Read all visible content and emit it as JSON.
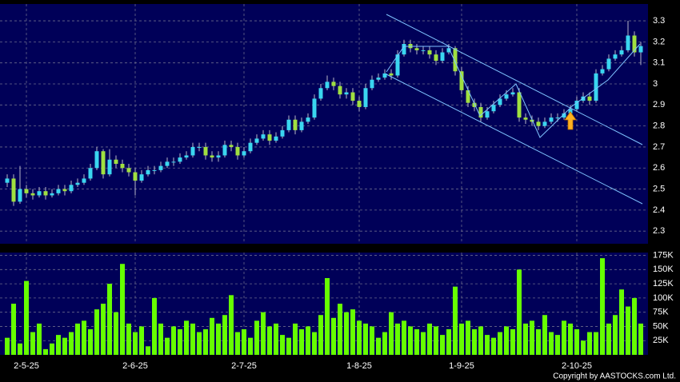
{
  "chart_data": [
    {
      "type": "candlestick",
      "up_color": "#3ad6f0",
      "down_color": "#a0e040",
      "grid": true,
      "ylim": [
        2.24,
        3.38
      ],
      "yticks": [
        2.3,
        2.4,
        2.5,
        2.6,
        2.7,
        2.8,
        2.9,
        3,
        3.1,
        3.2,
        3.3
      ],
      "open": [
        2.53,
        2.55,
        2.44,
        2.5,
        2.48,
        2.47,
        2.49,
        2.47,
        2.48,
        2.5,
        2.49,
        2.52,
        2.53,
        2.55,
        2.6,
        2.68,
        2.57,
        2.64,
        2.62,
        2.6,
        2.58,
        2.54,
        2.57,
        2.59,
        2.59,
        2.61,
        2.63,
        2.63,
        2.65,
        2.66,
        2.7,
        2.7,
        2.66,
        2.65,
        2.66,
        2.71,
        2.7,
        2.66,
        2.68,
        2.72,
        2.74,
        2.76,
        2.73,
        2.75,
        2.78,
        2.83,
        2.78,
        2.82,
        2.84,
        2.93,
        2.98,
        3.01,
        2.99,
        2.95,
        2.96,
        2.92,
        2.89,
        2.98,
        3.02,
        3.03,
        3.05,
        3.04,
        3.14,
        3.19,
        3.17,
        3.16,
        3.16,
        3.14,
        3.11,
        3.15,
        3.17,
        3.06,
        2.97,
        2.91,
        2.89,
        2.84,
        2.87,
        2.9,
        2.93,
        2.95,
        2.96,
        2.84,
        2.83,
        2.82,
        2.8,
        2.82,
        2.84,
        2.84,
        2.86,
        2.88,
        2.92,
        2.94,
        2.92,
        3.05,
        3.07,
        3.12,
        3.14,
        3.16,
        3.23,
        3.15
      ],
      "high": [
        2.57,
        2.57,
        2.61,
        2.52,
        2.5,
        2.51,
        2.51,
        2.5,
        2.52,
        2.52,
        2.54,
        2.55,
        2.57,
        2.62,
        2.7,
        2.69,
        2.69,
        2.66,
        2.64,
        2.62,
        2.6,
        2.59,
        2.61,
        2.61,
        2.63,
        2.65,
        2.65,
        2.67,
        2.68,
        2.72,
        2.72,
        2.72,
        2.68,
        2.68,
        2.73,
        2.73,
        2.72,
        2.7,
        2.74,
        2.76,
        2.78,
        2.78,
        2.77,
        2.8,
        2.85,
        2.85,
        2.84,
        2.86,
        2.95,
        3.0,
        3.04,
        3.03,
        3.01,
        2.98,
        2.98,
        2.94,
        3.0,
        3.04,
        3.05,
        3.07,
        3.07,
        3.16,
        3.21,
        3.21,
        3.19,
        3.18,
        3.18,
        3.16,
        3.17,
        3.19,
        3.18,
        3.08,
        2.99,
        2.93,
        2.91,
        2.89,
        2.92,
        2.95,
        2.97,
        2.98,
        2.98,
        2.86,
        2.85,
        2.84,
        2.84,
        2.86,
        2.86,
        2.88,
        2.9,
        2.94,
        2.96,
        2.96,
        3.07,
        3.09,
        3.14,
        3.16,
        3.18,
        3.3,
        3.25,
        3.2
      ],
      "low": [
        2.51,
        2.42,
        2.43,
        2.46,
        2.45,
        2.46,
        2.45,
        2.46,
        2.47,
        2.47,
        2.48,
        2.51,
        2.52,
        2.54,
        2.59,
        2.55,
        2.56,
        2.6,
        2.58,
        2.56,
        2.47,
        2.53,
        2.56,
        2.57,
        2.58,
        2.6,
        2.61,
        2.62,
        2.64,
        2.65,
        2.68,
        2.64,
        2.63,
        2.63,
        2.65,
        2.68,
        2.64,
        2.65,
        2.67,
        2.71,
        2.73,
        2.71,
        2.72,
        2.74,
        2.77,
        2.76,
        2.77,
        2.81,
        2.83,
        2.92,
        2.97,
        2.97,
        2.93,
        2.93,
        2.9,
        2.87,
        2.88,
        2.97,
        3.01,
        3.02,
        3.02,
        3.03,
        3.13,
        3.15,
        3.14,
        3.14,
        3.12,
        3.09,
        3.1,
        3.14,
        3.04,
        2.95,
        2.89,
        2.87,
        2.82,
        2.83,
        2.86,
        2.89,
        2.92,
        2.94,
        2.82,
        2.81,
        2.8,
        2.78,
        2.79,
        2.81,
        2.82,
        2.83,
        2.85,
        2.87,
        2.91,
        2.9,
        2.91,
        3.04,
        3.06,
        3.11,
        3.13,
        3.15,
        3.13,
        3.09
      ],
      "close": [
        2.55,
        2.44,
        2.5,
        2.48,
        2.47,
        2.49,
        2.47,
        2.48,
        2.5,
        2.49,
        2.52,
        2.53,
        2.55,
        2.6,
        2.68,
        2.57,
        2.64,
        2.62,
        2.6,
        2.58,
        2.54,
        2.57,
        2.59,
        2.59,
        2.61,
        2.63,
        2.63,
        2.65,
        2.66,
        2.7,
        2.7,
        2.66,
        2.65,
        2.66,
        2.71,
        2.7,
        2.66,
        2.68,
        2.72,
        2.74,
        2.76,
        2.73,
        2.75,
        2.78,
        2.83,
        2.78,
        2.82,
        2.84,
        2.93,
        2.98,
        3.01,
        2.99,
        2.95,
        2.96,
        2.92,
        2.89,
        2.98,
        3.02,
        3.03,
        3.05,
        3.04,
        3.14,
        3.19,
        3.17,
        3.16,
        3.16,
        3.14,
        3.11,
        3.15,
        3.17,
        3.06,
        2.97,
        2.91,
        2.89,
        2.84,
        2.87,
        2.9,
        2.93,
        2.95,
        2.96,
        2.84,
        2.83,
        2.82,
        2.8,
        2.82,
        2.84,
        2.84,
        2.86,
        2.88,
        2.92,
        2.94,
        2.92,
        3.05,
        3.07,
        3.12,
        3.14,
        3.16,
        3.23,
        3.15,
        3.18
      ]
    },
    {
      "type": "bar",
      "color": "#66ff00",
      "grid": true,
      "ylim": [
        0,
        180000
      ],
      "yticks": [
        {
          "value": 25000,
          "label": "25K"
        },
        {
          "value": 50000,
          "label": "50K"
        },
        {
          "value": 75000,
          "label": "75K"
        },
        {
          "value": 100000,
          "label": "100K"
        },
        {
          "value": 125000,
          "label": "125K"
        },
        {
          "value": 150000,
          "label": "150K"
        },
        {
          "value": 175000,
          "label": "175K"
        }
      ],
      "categories": [
        null,
        null,
        null,
        "2-5-25",
        null,
        null,
        null,
        null,
        null,
        null,
        null,
        null,
        null,
        null,
        null,
        null,
        null,
        null,
        null,
        null,
        "2-6-25",
        null,
        null,
        null,
        null,
        null,
        null,
        null,
        null,
        null,
        null,
        null,
        null,
        null,
        null,
        null,
        null,
        "2-7-25",
        null,
        null,
        null,
        null,
        null,
        null,
        null,
        null,
        null,
        null,
        null,
        null,
        null,
        null,
        null,
        null,
        null,
        "1-8-25",
        null,
        null,
        null,
        null,
        null,
        null,
        null,
        null,
        null,
        null,
        null,
        null,
        null,
        null,
        null,
        "1-9-25",
        null,
        null,
        null,
        null,
        null,
        null,
        null,
        null,
        null,
        null,
        null,
        null,
        null,
        null,
        null,
        null,
        null,
        "2-10-25",
        null,
        null,
        null,
        null,
        null,
        null,
        null,
        null,
        null,
        null
      ],
      "values": [
        30000,
        90000,
        20000,
        130000,
        40000,
        55000,
        10000,
        20000,
        35000,
        30000,
        40000,
        55000,
        60000,
        45000,
        80000,
        90000,
        125000,
        75000,
        160000,
        55000,
        40000,
        50000,
        15000,
        100000,
        55000,
        30000,
        50000,
        45000,
        60000,
        55000,
        40000,
        45000,
        65000,
        55000,
        70000,
        105000,
        40000,
        45000,
        30000,
        60000,
        75000,
        50000,
        55000,
        35000,
        30000,
        55000,
        45000,
        50000,
        40000,
        70000,
        135000,
        65000,
        90000,
        75000,
        80000,
        60000,
        55000,
        50000,
        30000,
        40000,
        75000,
        55000,
        60000,
        50000,
        45000,
        40000,
        55000,
        50000,
        35000,
        45000,
        120000,
        55000,
        60000,
        45000,
        50000,
        35000,
        30000,
        40000,
        50000,
        45000,
        150000,
        55000,
        60000,
        45000,
        70000,
        40000,
        35000,
        60000,
        55000,
        45000,
        25000,
        40000,
        40000,
        170000,
        55000,
        70000,
        115000,
        85000,
        100000,
        55000
      ],
      "footer": "Copyright by AASTOCKS.com Ltd."
    }
  ]
}
